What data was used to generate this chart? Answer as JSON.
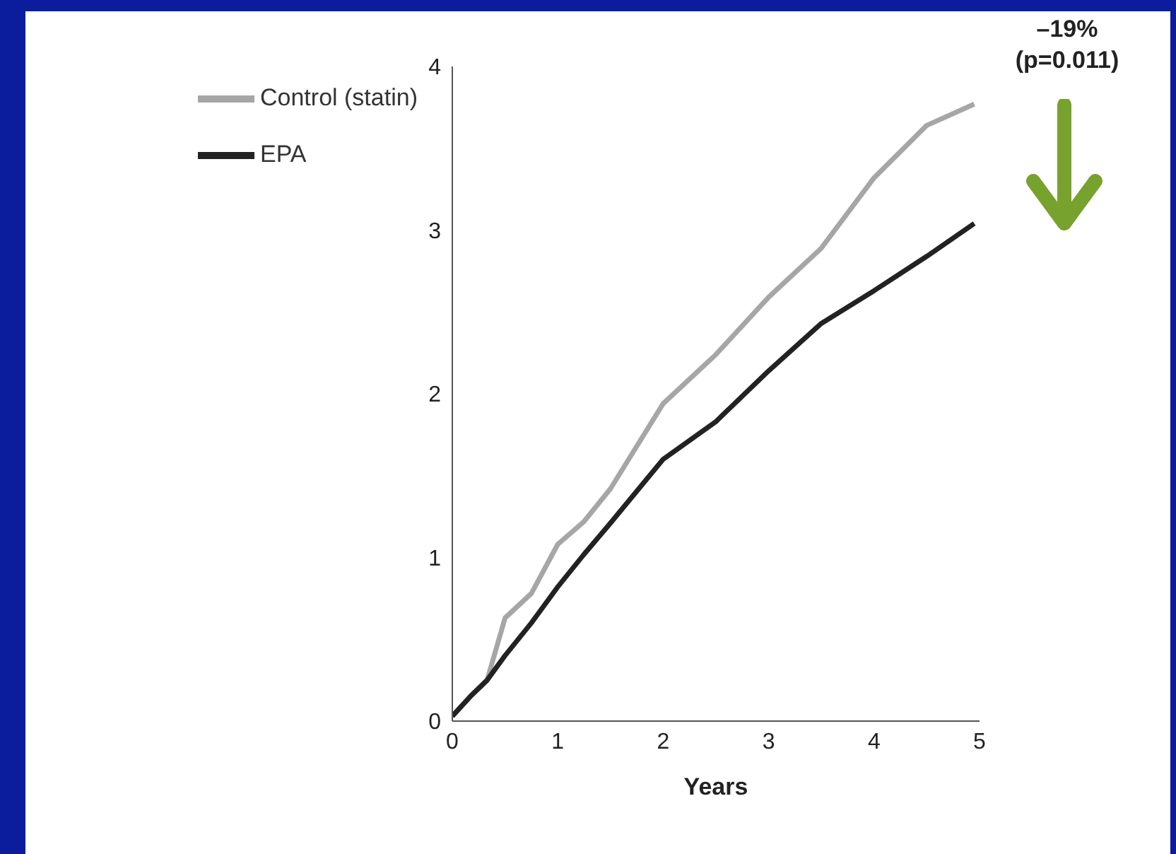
{
  "chart_data": {
    "type": "line",
    "xlabel": "Years",
    "x": [
      0,
      0.17,
      0.33,
      0.5,
      0.75,
      1,
      1.25,
      1.5,
      2,
      2.5,
      3,
      3.5,
      4,
      4.5,
      4.95
    ],
    "series": [
      {
        "name": "Control (statin)",
        "color": "#a6a6a6",
        "values": [
          0.03,
          0.15,
          0.25,
          0.63,
          0.78,
          1.08,
          1.22,
          1.42,
          1.94,
          2.24,
          2.59,
          2.89,
          3.32,
          3.64,
          3.77
        ]
      },
      {
        "name": "EPA",
        "color": "#222222",
        "values": [
          0.03,
          0.15,
          0.25,
          0.4,
          0.6,
          0.82,
          1.02,
          1.21,
          1.6,
          1.83,
          2.14,
          2.43,
          2.63,
          2.84,
          3.04
        ]
      }
    ],
    "xlim": [
      0,
      5
    ],
    "xticks": [
      0,
      1,
      2,
      3,
      4,
      5
    ],
    "ylim": [
      0,
      4
    ],
    "yticks": [
      0,
      1,
      2,
      3,
      4
    ],
    "grid": false,
    "legend": "top left",
    "marker": "none",
    "line_style": "solid",
    "annotations": [
      "–19%",
      "(p=0.011)"
    ]
  }
}
